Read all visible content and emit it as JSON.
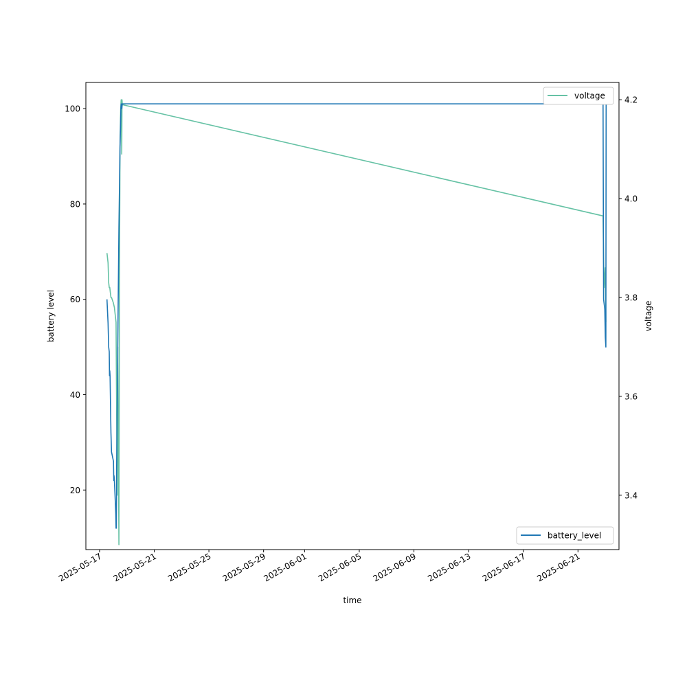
{
  "chart_data": {
    "type": "line",
    "xlabel": "time",
    "ylabel_left": "battery level",
    "ylabel_right": "voltage",
    "xlim": [
      "2025-05-16T00:00",
      "2025-06-24T00:00"
    ],
    "ylim_left": [
      7.5,
      105.5
    ],
    "ylim_right": [
      3.29,
      4.235
    ],
    "x_ticks": [
      "2025-05-17",
      "2025-05-21",
      "2025-05-25",
      "2025-05-29",
      "2025-06-01",
      "2025-06-05",
      "2025-06-09",
      "2025-06-13",
      "2025-06-17",
      "2025-06-21"
    ],
    "y_ticks_left": [
      20,
      40,
      60,
      80,
      100
    ],
    "y_ticks_right": [
      3.4,
      3.6,
      3.8,
      4.0,
      4.2
    ],
    "grid": false,
    "legends": [
      {
        "series": "voltage",
        "placement": "upper right"
      },
      {
        "series": "battery_level",
        "placement": "lower right"
      }
    ],
    "series": [
      {
        "name": "battery_level",
        "axis": "left",
        "color": "#1f77b4",
        "points": [
          [
            "2025-05-17T13:00",
            60
          ],
          [
            "2025-05-17T15:00",
            55
          ],
          [
            "2025-05-17T16:00",
            50
          ],
          [
            "2025-05-17T17:00",
            49
          ],
          [
            "2025-05-17T17:30",
            44
          ],
          [
            "2025-05-17T18:00",
            45
          ],
          [
            "2025-05-17T18:30",
            44
          ],
          [
            "2025-05-17T20:00",
            32
          ],
          [
            "2025-05-17T21:00",
            28
          ],
          [
            "2025-05-18T00:30",
            26
          ],
          [
            "2025-05-18T01:00",
            22
          ],
          [
            "2025-05-18T01:30",
            23
          ],
          [
            "2025-05-18T02:00",
            22
          ],
          [
            "2025-05-18T03:30",
            18
          ],
          [
            "2025-05-18T04:30",
            15
          ],
          [
            "2025-05-18T05:00",
            12
          ],
          [
            "2025-05-18T05:30",
            12
          ],
          [
            "2025-05-18T06:00",
            25
          ],
          [
            "2025-05-18T08:00",
            50
          ],
          [
            "2025-05-18T10:00",
            75
          ],
          [
            "2025-05-18T12:00",
            92
          ],
          [
            "2025-05-18T13:30",
            100
          ],
          [
            "2025-05-18T14:00",
            101
          ],
          [
            "2025-05-18T15:00",
            100
          ],
          [
            "2025-05-18T16:00",
            101
          ],
          [
            "2025-06-22T20:00",
            101
          ],
          [
            "2025-06-22T21:00",
            60
          ],
          [
            "2025-06-22T23:00",
            58
          ],
          [
            "2025-06-23T00:00",
            52
          ],
          [
            "2025-06-23T01:00",
            50
          ],
          [
            "2025-06-23T01:30",
            101
          ]
        ]
      },
      {
        "name": "voltage",
        "axis": "right",
        "color": "#66c2a5",
        "points": [
          [
            "2025-05-17T13:00",
            3.89
          ],
          [
            "2025-05-17T14:00",
            3.88
          ],
          [
            "2025-05-17T15:00",
            3.87
          ],
          [
            "2025-05-17T16:00",
            3.83
          ],
          [
            "2025-05-17T17:00",
            3.82
          ],
          [
            "2025-05-17T18:00",
            3.82
          ],
          [
            "2025-05-17T19:00",
            3.81
          ],
          [
            "2025-05-17T20:00",
            3.8
          ],
          [
            "2025-05-17T21:00",
            3.8
          ],
          [
            "2025-05-18T00:00",
            3.79
          ],
          [
            "2025-05-18T02:00",
            3.78
          ],
          [
            "2025-05-18T04:00",
            3.76
          ],
          [
            "2025-05-18T05:00",
            3.75
          ],
          [
            "2025-05-18T07:00",
            3.4
          ],
          [
            "2025-05-18T08:00",
            3.7
          ],
          [
            "2025-05-18T10:00",
            3.3
          ],
          [
            "2025-05-18T11:00",
            3.85
          ],
          [
            "2025-05-18T12:00",
            4.1
          ],
          [
            "2025-05-18T13:00",
            4.18
          ],
          [
            "2025-05-18T14:00",
            4.2
          ],
          [
            "2025-05-18T15:00",
            4.09
          ],
          [
            "2025-05-18T15:30",
            4.2
          ],
          [
            "2025-05-18T16:00",
            4.19
          ],
          [
            "2025-06-22T20:00",
            3.965
          ],
          [
            "2025-06-22T21:00",
            3.88
          ],
          [
            "2025-06-22T22:00",
            3.82
          ],
          [
            "2025-06-23T00:00",
            3.86
          ],
          [
            "2025-06-23T01:00",
            3.75
          ]
        ]
      }
    ]
  }
}
